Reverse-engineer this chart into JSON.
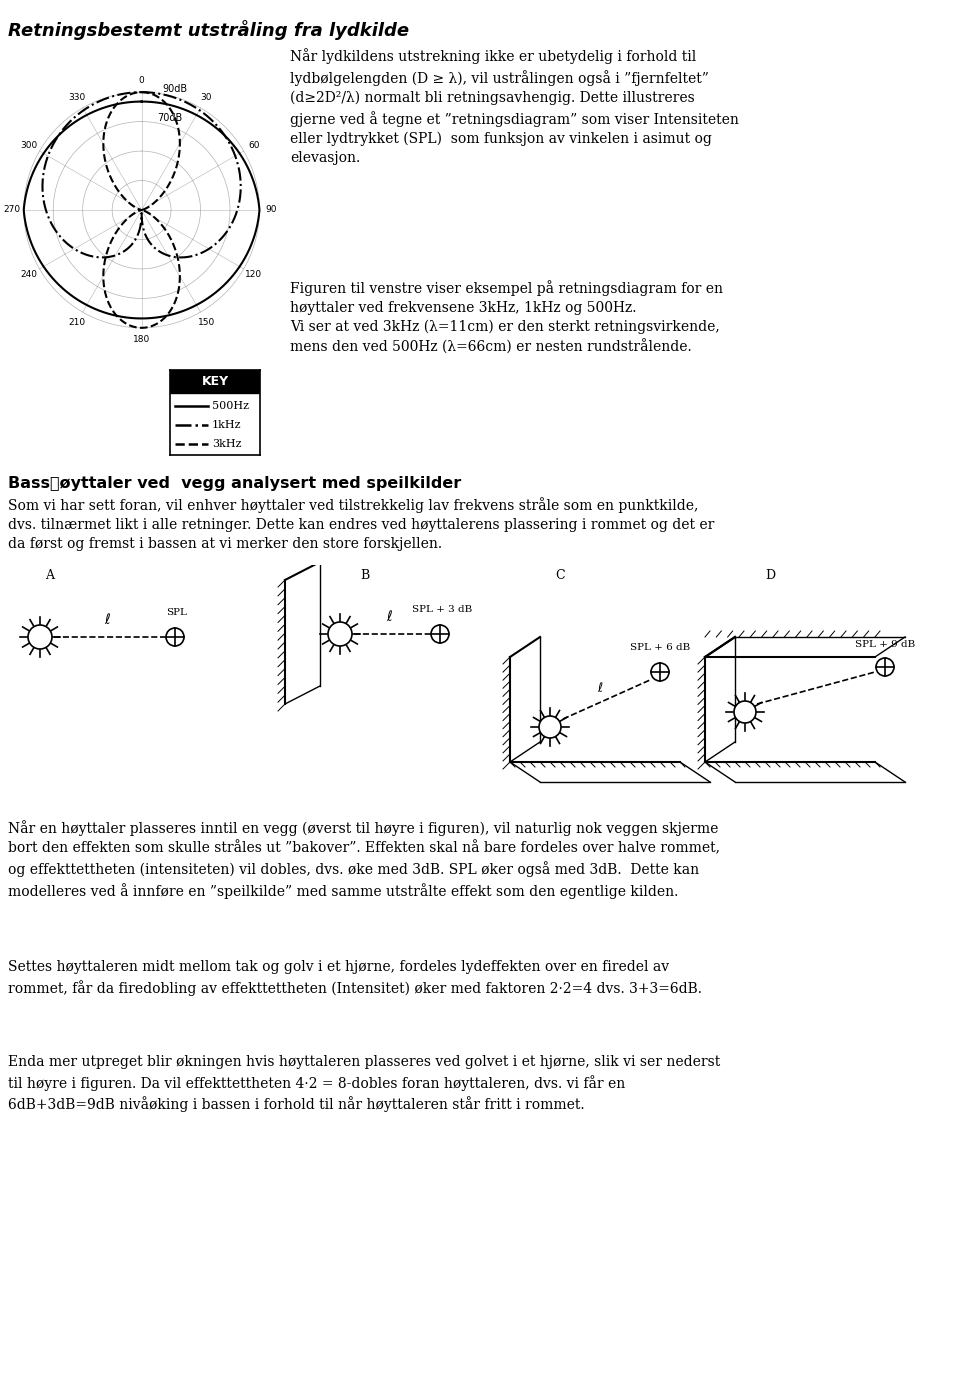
{
  "title": "Retningsbestemt utstråling fra lydkilde",
  "title_fontsize": 13,
  "body_fontsize": 10,
  "text_color": "#000000",
  "background_color": "#ffffff",
  "paragraph1": "Når lydkildens utstrekning ikke er ubetydelig i forhold til\nlydbølgelengden (D ≥ λ), vil ustrålingen også i ”fjernfeltet”\n(d≥2D²/λ) normalt bli retningsavhengig. Dette illustreres\ngjerne ved å tegne et ”retningsdiagram” som viser Intensiteten\neller lydtrykket (SPL)  som funksjon av vinkelen i asimut og\nelevasjon.",
  "paragraph2": "Figuren til venstre viser eksempel på retningsdiagram for en\nhøyttaler ved frekvensene 3kHz, 1kHz og 500Hz.\nVi ser at ved 3kHz (λ=11cm) er den sterkt retningsvirkende,\nmens den ved 500Hz (λ=66cm) er nesten rundstrålende.",
  "key_label": "KEY",
  "legend_500": "500Hz",
  "legend_1k": "1kHz",
  "legend_3k": "3kHz",
  "section2_title": "Bassหøyttaler ved  vegg analysert med speilkilder",
  "section2_para": "Som vi har sett foran, vil enhver høyttaler ved tilstrekkelig lav frekvens stråle som en punktkilde,\ndvs. tilnærmet likt i alle retninger. Dette kan endres ved høyttalerens plassering i rommet og det er\nda først og fremst i bassen at vi merker den store forskjellen.",
  "para3": "Når en høyttaler plasseres inntil en vegg (øverst til høyre i figuren), vil naturlig nok veggen skjerme\nbort den effekten som skulle stråles ut ”bakover”. Effekten skal nå bare fordeles over halve rommet,\nog effekttettheten (intensiteten) vil dobles, dvs. øke med 3dB. SPL øker også med 3dB.  Dette kan\nmodelleres ved å innføre en ”speilkilde” med samme utstrålte effekt som den egentlige kilden.",
  "para4": "Settes høyttaleren midt mellom tak og golv i et hjørne, fordeles lydeffekten over en firedel av\nrommet, får da firedobling av effekttettheten (Intensitet) øker med faktoren 2·2=4 dvs. 3+3=6dB.",
  "para5": "Enda mer utpreget blir økningen hvis høyttaleren plasseres ved golvet i et hjørne, slik vi ser nederst\ntil høyre i figuren. Da vil effekttettheten 4·2 = 8-dobles foran høyttaleren, dvs. vi får en\n6dB+3dB=9dB nivåøking i bassen i forhold til når høyttaleren står fritt i rommet."
}
